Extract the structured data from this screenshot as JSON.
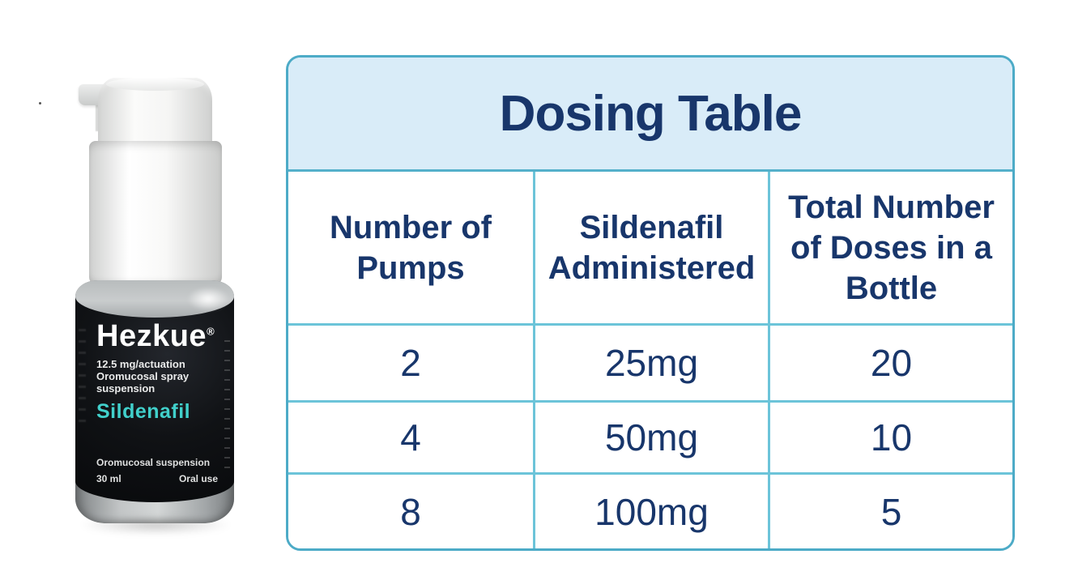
{
  "product_bottle": {
    "brand": "Hezkue",
    "trademark": "®",
    "info_lines": [
      "12.5 mg/actuation",
      "Oromucosal spray",
      "suspension"
    ],
    "drug_name": "Sildenafil",
    "footer_line": "Oromucosal suspension",
    "volume": "30 ml",
    "route": "Oral use"
  },
  "dosing_table": {
    "title": "Dosing Table",
    "columns": [
      "Number of Pumps",
      "Sildenafil Administered",
      "Total Number of Doses in a Bottle"
    ],
    "rows": [
      [
        "2",
        "25mg",
        "20"
      ],
      [
        "4",
        "50mg",
        "10"
      ],
      [
        "8",
        "100mg",
        "5"
      ]
    ]
  },
  "chart_data": {
    "type": "table",
    "title": "Dosing Table",
    "columns": [
      "Number of Pumps",
      "Sildenafil Administered",
      "Total Number of Doses in a Bottle"
    ],
    "rows": [
      [
        "2",
        "25mg",
        "20"
      ],
      [
        "4",
        "50mg",
        "10"
      ],
      [
        "8",
        "100mg",
        "5"
      ]
    ]
  },
  "colors": {
    "table_outer_border": "#4dabc7",
    "table_gridline": "#6cc4d9",
    "title_background": "#d9ecf8",
    "heading_text": "#18366b",
    "cell_background": "#ffffff",
    "drug_name_accent": "#41d0cb",
    "label_background": "#0c0e11"
  }
}
